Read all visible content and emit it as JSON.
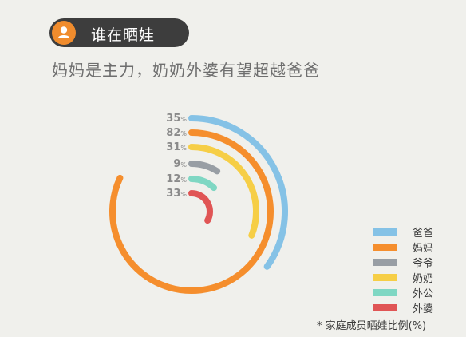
{
  "header": {
    "title": "谁在晒娃",
    "subtitle": "妈妈是主力，奶奶外婆有望超越爸爸",
    "icon": "user-icon"
  },
  "chart_data": {
    "type": "radial-bar",
    "unit": "%",
    "series": [
      {
        "name": "爸爸",
        "value": 35,
        "color": "#85c2e6"
      },
      {
        "name": "妈妈",
        "value": 82,
        "color": "#f58e2d"
      },
      {
        "name": "爷爷",
        "value": 9,
        "color": "#989ea4"
      },
      {
        "name": "奶奶",
        "value": 31,
        "color": "#f6ce46"
      },
      {
        "name": "外公",
        "value": 12,
        "color": "#7fd7c3"
      },
      {
        "name": "外婆",
        "value": 33,
        "color": "#e05555"
      }
    ],
    "legend_position": "bottom-right",
    "footnote": "* 家庭成员晒娃比例(%)"
  }
}
